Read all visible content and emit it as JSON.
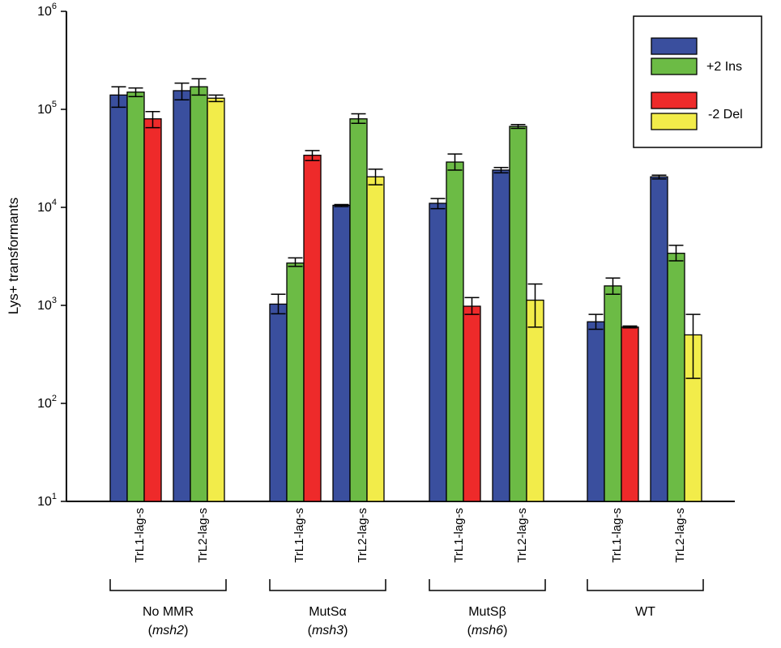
{
  "chart_data": {
    "type": "bar",
    "scale": "log",
    "ylabel": "Lys+ transformants",
    "ylim": [
      10,
      1000000
    ],
    "y_ticks": [
      {
        "base": "10",
        "exp": "1"
      },
      {
        "base": "10",
        "exp": "2"
      },
      {
        "base": "10",
        "exp": "3"
      },
      {
        "base": "10",
        "exp": "4"
      },
      {
        "base": "10",
        "exp": "5"
      },
      {
        "base": "10",
        "exp": "6"
      }
    ],
    "grid": false,
    "legend": {
      "placement": "top-right",
      "labels": [
        "+2 Ins",
        "-2 Del"
      ]
    },
    "series_colors": [
      "#3a4f9e",
      "#6cbb45",
      "#ee2a2a",
      "#f2ec4a"
    ],
    "groups": [
      {
        "label": "No MMR",
        "sublabel": "msh2",
        "clusters": [
          {
            "label": "TrL1-lag-s",
            "bars": [
              {
                "value": 140000,
                "err": [
                  105000,
                  170000
                ]
              },
              {
                "value": 150000,
                "err": [
                  135000,
                  165000
                ]
              },
              {
                "value": 80000,
                "err": [
                  65000,
                  95000
                ]
              }
            ]
          },
          {
            "label": "TrL2-lag-s",
            "bars": [
              {
                "value": 155000,
                "err": [
                  125000,
                  185000
                ]
              },
              {
                "value": 170000,
                "err": [
                  140000,
                  205000
                ]
              },
              {
                "value": 130000,
                "err": [
                  120000,
                  140000
                ]
              }
            ]
          }
        ]
      },
      {
        "label": "MutSα",
        "sublabel": "msh3",
        "clusters": [
          {
            "label": "TrL1-lag-s",
            "bars": [
              {
                "value": 1030,
                "err": [
                  820,
                  1300
                ]
              },
              {
                "value": 2700,
                "err": [
                  2500,
                  3050
                ]
              },
              {
                "value": 34000,
                "err": [
                  30000,
                  38000
                ]
              }
            ]
          },
          {
            "label": "TrL2-lag-s",
            "bars": [
              {
                "value": 10500,
                "err": [
                  10200,
                  10700
                ]
              },
              {
                "value": 80000,
                "err": [
                  72000,
                  90000
                ]
              },
              {
                "value": 20500,
                "err": [
                  17000,
                  24500
                ]
              }
            ]
          }
        ]
      },
      {
        "label": "MutSβ",
        "sublabel": "msh6",
        "clusters": [
          {
            "label": "TrL1-lag-s",
            "bars": [
              {
                "value": 11000,
                "err": [
                  9700,
                  12300
                ]
              },
              {
                "value": 29000,
                "err": [
                  24000,
                  35000
                ]
              },
              {
                "value": 980,
                "err": [
                  810,
                  1200
                ]
              }
            ]
          },
          {
            "label": "TrL2-lag-s",
            "bars": [
              {
                "value": 24000,
                "err": [
                  22500,
                  25500
                ]
              },
              {
                "value": 67000,
                "err": [
                  64000,
                  70000
                ]
              },
              {
                "value": 1130,
                "err": [
                  600,
                  1650
                ]
              }
            ]
          }
        ]
      },
      {
        "label": "WT",
        "sublabel": "",
        "clusters": [
          {
            "label": "TrL1-lag-s",
            "bars": [
              {
                "value": 680,
                "err": [
                  570,
                  810
                ]
              },
              {
                "value": 1580,
                "err": [
                  1300,
                  1900
                ]
              },
              {
                "value": 600,
                "err": [
                  590,
                  615
                ]
              }
            ]
          },
          {
            "label": "TrL2-lag-s",
            "bars": [
              {
                "value": 20500,
                "err": [
                  19500,
                  21300
                ]
              },
              {
                "value": 3400,
                "err": [
                  2850,
                  4100
                ]
              },
              {
                "value": 500,
                "err": [
                  180,
                  810
                ]
              }
            ]
          }
        ]
      }
    ]
  }
}
